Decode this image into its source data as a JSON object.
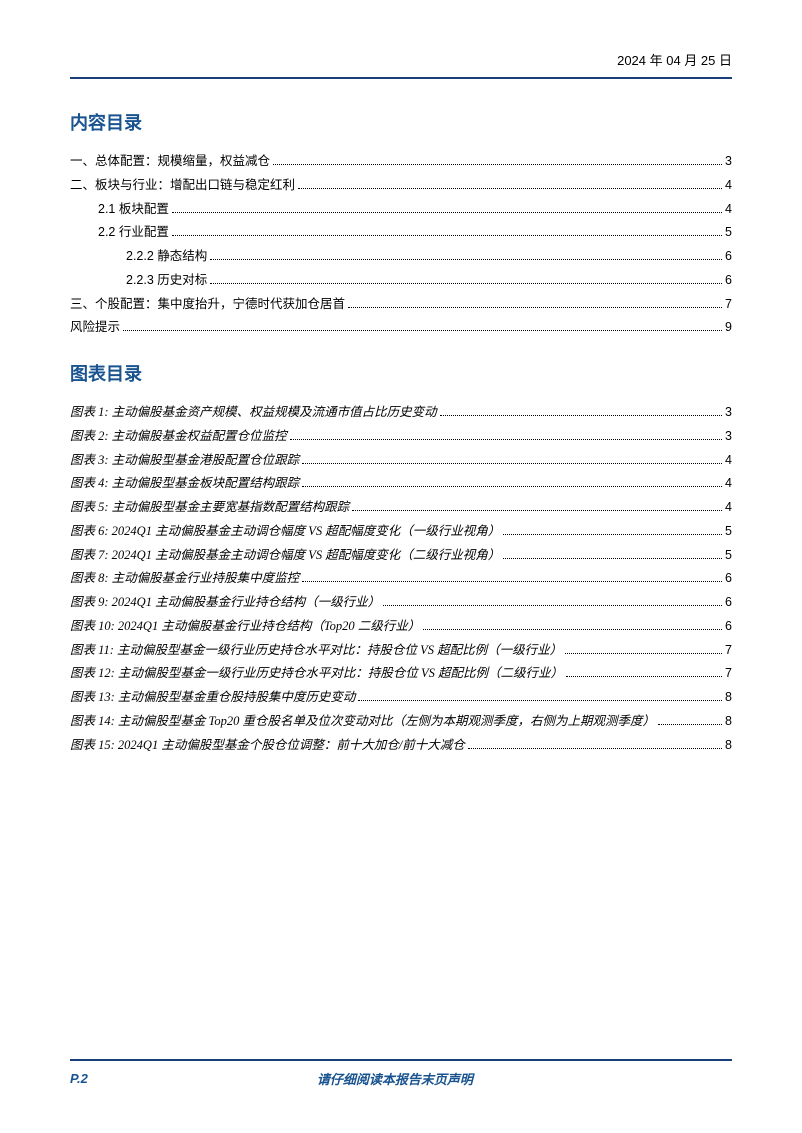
{
  "header": {
    "date": "2024 年 04 月 25 日"
  },
  "sections": {
    "content_toc_title": "内容目录",
    "figure_toc_title": "图表目录"
  },
  "content_toc": [
    {
      "text": "一、总体配置：规模缩量，权益减仓",
      "page": "3",
      "indent": 0
    },
    {
      "text": "二、板块与行业：增配出口链与稳定红利",
      "page": "4",
      "indent": 0
    },
    {
      "text": "2.1  板块配置",
      "page": "4",
      "indent": 1
    },
    {
      "text": "2.2  行业配置",
      "page": "5",
      "indent": 1
    },
    {
      "text": "2.2.2 静态结构",
      "page": "6",
      "indent": 2
    },
    {
      "text": "2.2.3 历史对标",
      "page": "6",
      "indent": 2
    },
    {
      "text": "三、个股配置：集中度抬升，宁德时代获加仓居首",
      "page": "7",
      "indent": 0
    },
    {
      "text": "风险提示",
      "page": "9",
      "indent": 0
    }
  ],
  "figure_toc": [
    {
      "label": "图表 1:",
      "text": "主动偏股基金资产规模、权益规模及流通市值占比历史变动",
      "page": "3"
    },
    {
      "label": "图表 2:",
      "text": "主动偏股基金权益配置仓位监控",
      "page": "3"
    },
    {
      "label": "图表 3:",
      "text": "主动偏股型基金港股配置仓位跟踪",
      "page": "4"
    },
    {
      "label": "图表 4:",
      "text": "主动偏股型基金板块配置结构跟踪",
      "page": "4"
    },
    {
      "label": "图表 5:",
      "text": "主动偏股型基金主要宽基指数配置结构跟踪",
      "page": "4"
    },
    {
      "label": "图表 6:",
      "text": "2024Q1 主动偏股基金主动调仓幅度 VS 超配幅度变化（一级行业视角）",
      "page": "5"
    },
    {
      "label": "图表 7:",
      "text": "2024Q1 主动偏股基金主动调仓幅度 VS 超配幅度变化（二级行业视角）",
      "page": "5"
    },
    {
      "label": "图表 8:",
      "text": "主动偏股基金行业持股集中度监控",
      "page": "6"
    },
    {
      "label": "图表 9:",
      "text": "2024Q1 主动偏股基金行业持仓结构（一级行业）",
      "page": "6"
    },
    {
      "label": "图表 10:",
      "text": " 2024Q1 主动偏股基金行业持仓结构（Top20 二级行业）",
      "page": "6"
    },
    {
      "label": "图表 11:",
      "text": "主动偏股型基金一级行业历史持仓水平对比：持股仓位 VS 超配比例（一级行业）",
      "page": "7"
    },
    {
      "label": "图表 12:",
      "text": "主动偏股型基金一级行业历史持仓水平对比：持股仓位 VS 超配比例（二级行业）",
      "page": "7"
    },
    {
      "label": "图表 13:",
      "text": "主动偏股型基金重仓股持股集中度历史变动",
      "page": "8"
    },
    {
      "label": "图表 14:",
      "text": "主动偏股型基金 Top20 重仓股名单及位次变动对比（左侧为本期观测季度，右侧为上期观测季度）",
      "page": "8"
    },
    {
      "label": "图表 15:",
      "text": "2024Q1 主动偏股型基金个股仓位调整：前十大加仓/前十大减仓",
      "page": "8"
    }
  ],
  "footer": {
    "page_label": "P.2",
    "disclaimer": "请仔细阅读本报告末页声明"
  },
  "colors": {
    "heading": "#1a5490",
    "rule": "#1a3e7a",
    "text": "#000000",
    "background": "#ffffff"
  }
}
